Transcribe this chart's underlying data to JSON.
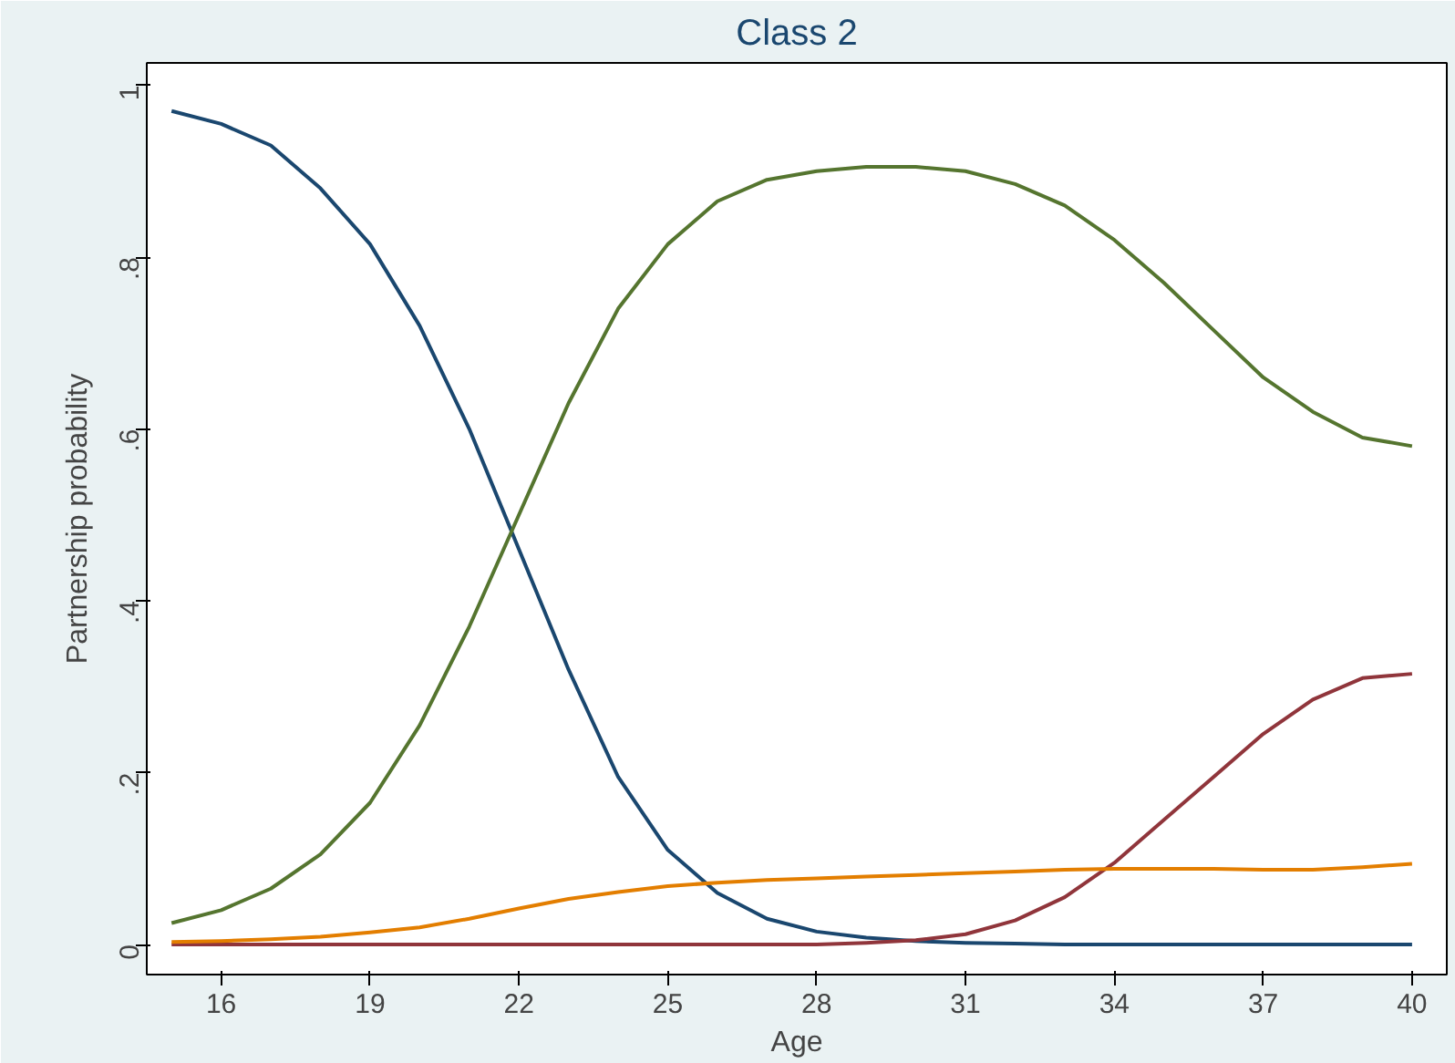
{
  "chart_data": {
    "type": "line",
    "title": "Class 2",
    "xlabel": "Age",
    "ylabel": "Partnership probability",
    "x": [
      15,
      16,
      17,
      18,
      19,
      20,
      21,
      22,
      23,
      24,
      25,
      26,
      27,
      28,
      29,
      30,
      31,
      32,
      33,
      34,
      35,
      36,
      37,
      38,
      39,
      40
    ],
    "series": [
      {
        "color": "#1a476f",
        "values": [
          0.97,
          0.955,
          0.93,
          0.88,
          0.815,
          0.72,
          0.6,
          0.46,
          0.32,
          0.195,
          0.11,
          0.06,
          0.03,
          0.015,
          0.008,
          0.004,
          0.002,
          0.001,
          0,
          0,
          0,
          0,
          0,
          0,
          0,
          0
        ]
      },
      {
        "color": "#55752f",
        "values": [
          0.025,
          0.04,
          0.065,
          0.105,
          0.165,
          0.255,
          0.37,
          0.5,
          0.63,
          0.74,
          0.815,
          0.865,
          0.89,
          0.9,
          0.905,
          0.905,
          0.9,
          0.885,
          0.86,
          0.82,
          0.77,
          0.715,
          0.66,
          0.62,
          0.59,
          0.58
        ]
      },
      {
        "color": "#90353b",
        "values": [
          0,
          0,
          0,
          0,
          0,
          0,
          0,
          0,
          0,
          0,
          0,
          0,
          0,
          0,
          0.002,
          0.005,
          0.012,
          0.028,
          0.055,
          0.095,
          0.145,
          0.195,
          0.245,
          0.285,
          0.31,
          0.315
        ]
      },
      {
        "color": "#e37e00",
        "values": [
          0.003,
          0.004,
          0.006,
          0.009,
          0.014,
          0.02,
          0.03,
          0.042,
          0.053,
          0.061,
          0.068,
          0.072,
          0.075,
          0.077,
          0.079,
          0.081,
          0.083,
          0.085,
          0.087,
          0.088,
          0.088,
          0.088,
          0.087,
          0.087,
          0.09,
          0.094
        ]
      }
    ],
    "xlim": [
      14.5,
      40.7
    ],
    "ylim": [
      -0.035,
      1.026
    ],
    "xticks": [
      16,
      19,
      22,
      25,
      28,
      31,
      34,
      37,
      40
    ],
    "yticks": [
      0,
      {
        "value": 0.2,
        "label": ".2"
      },
      {
        "value": 0.4,
        "label": ".4"
      },
      {
        "value": 0.6,
        "label": ".6"
      },
      {
        "value": 0.8,
        "label": ".8"
      },
      1
    ],
    "grid": false,
    "line_style": "solid",
    "marker": "none"
  }
}
